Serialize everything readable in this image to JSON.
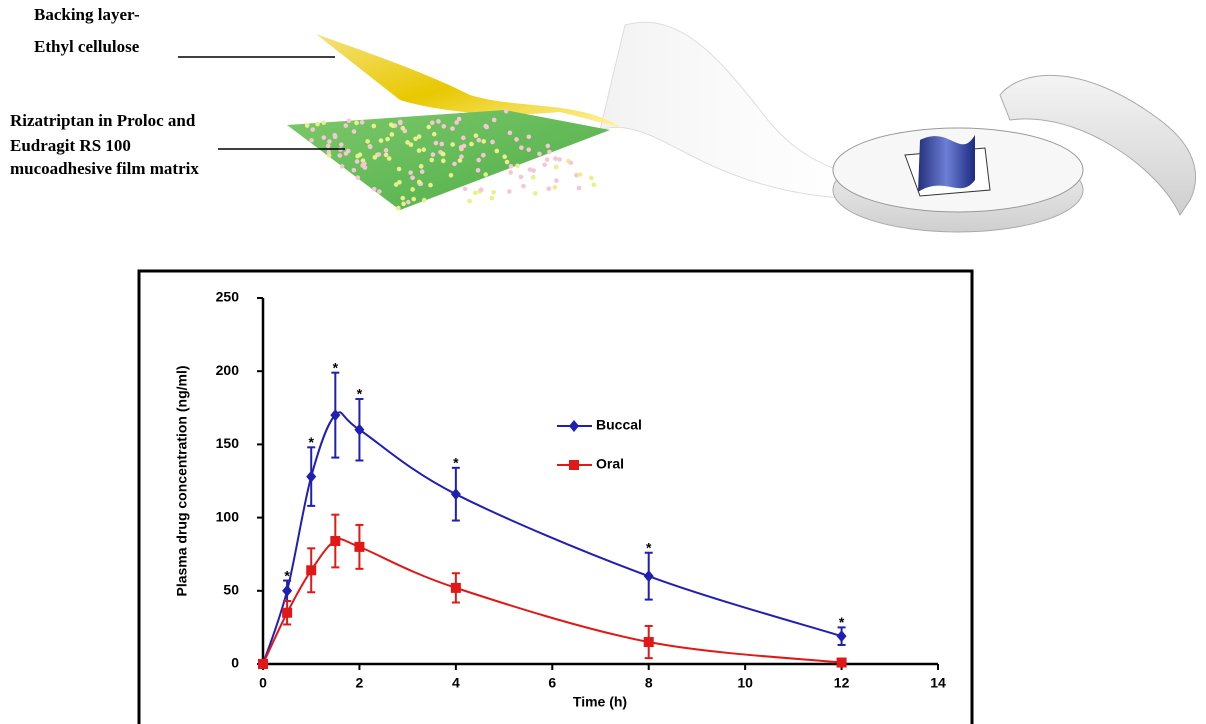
{
  "illustration": {
    "labels": [
      "Backing layer-",
      "Ethyl cellulose",
      "Rizatriptan in Proloc and",
      "Eudragit RS 100",
      "mucoadhesive film matrix"
    ]
  },
  "chart_data": {
    "type": "line",
    "x_label": "Time (h)",
    "y_label": "Plasma drug concentration (ng/ml)",
    "x": [
      0,
      0.5,
      1,
      1.5,
      2,
      4,
      8,
      12
    ],
    "series": [
      {
        "name": "Buccal",
        "color": "#1f1fb4",
        "marker": "diamond",
        "values": [
          0,
          50,
          128,
          170,
          160,
          116,
          60,
          19
        ],
        "errors": [
          0,
          7,
          20,
          29,
          21,
          18,
          16,
          6
        ]
      },
      {
        "name": "Oral",
        "color": "#e01818",
        "marker": "square",
        "values": [
          0,
          35,
          64,
          84,
          80,
          52,
          15,
          1
        ],
        "errors": [
          0,
          8,
          15,
          18,
          15,
          10,
          11,
          0
        ]
      }
    ],
    "annotations": [
      null,
      "*",
      "*",
      "*",
      "*",
      "*",
      "*",
      "*"
    ],
    "xlim": [
      0,
      14
    ],
    "xticks": [
      0,
      2,
      4,
      6,
      8,
      10,
      12,
      14
    ],
    "ylim": [
      0,
      250
    ],
    "yticks": [
      0,
      50,
      100,
      150,
      200,
      250
    ],
    "legend": "center"
  }
}
